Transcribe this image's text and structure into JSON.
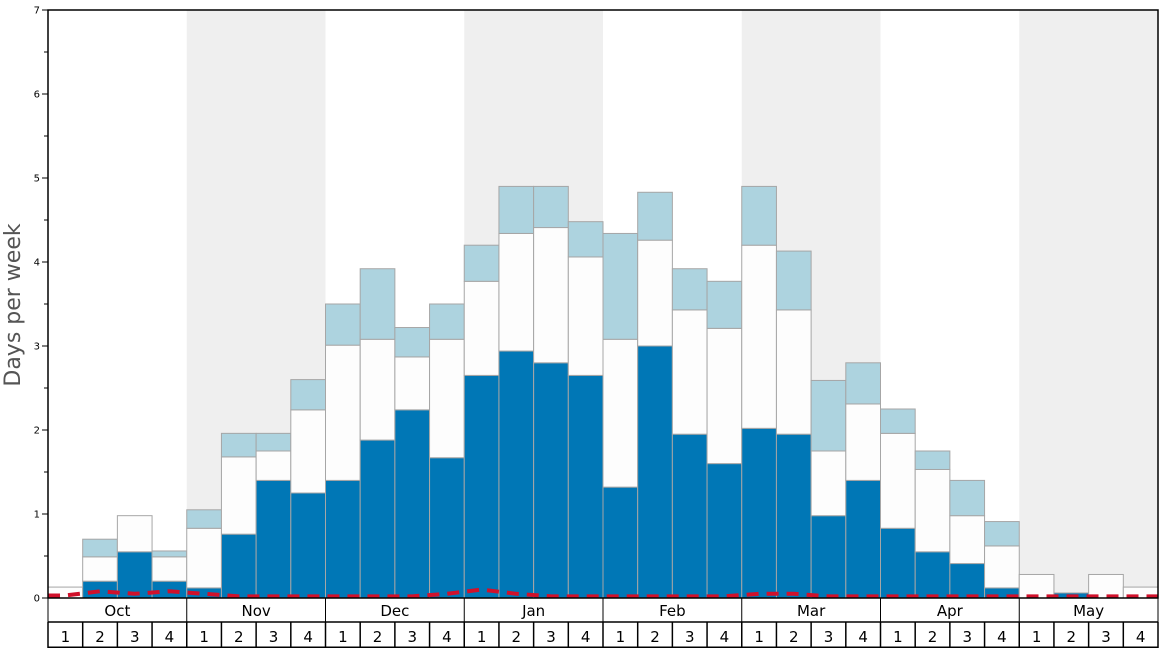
{
  "chart_data": {
    "type": "bar",
    "ylabel": "Days per week",
    "ylim": [
      0,
      7
    ],
    "yticks": [
      "0",
      "1",
      "2",
      "3",
      "4",
      "5",
      "6",
      "7"
    ],
    "months": [
      "Oct",
      "Nov",
      "Dec",
      "Jan",
      "Feb",
      "Mar",
      "Apr",
      "May"
    ],
    "week_labels": [
      "1",
      "2",
      "3",
      "4"
    ],
    "stacked": true,
    "colors": {
      "bottom": "#0077b6",
      "middle": "#fdfdfd",
      "top": "#add3df",
      "dashed_line": "#d0112b",
      "shaded_band": "#efefef"
    },
    "series": [
      {
        "values": [
          0,
          0.2,
          0.55,
          0.2,
          0.12,
          0.76,
          1.4,
          1.25,
          1.4,
          1.88,
          2.24,
          1.67,
          2.65,
          2.94,
          2.8,
          2.65,
          1.32,
          3.0,
          1.95,
          1.6,
          2.02,
          1.95,
          0.98,
          1.4,
          0.83,
          0.55,
          0.41,
          0.12,
          0,
          0.06,
          0,
          0
        ]
      },
      {
        "values": [
          0.13,
          0.29,
          0.43,
          0.29,
          0.71,
          0.92,
          0.35,
          0.99,
          1.61,
          1.2,
          0.63,
          1.41,
          1.12,
          1.4,
          1.61,
          1.41,
          1.76,
          1.26,
          1.48,
          1.61,
          2.18,
          1.48,
          0.77,
          0.91,
          1.13,
          0.98,
          0.57,
          0.5,
          0.28,
          0,
          0.28,
          0.13
        ]
      },
      {
        "values": [
          0,
          0.21,
          0,
          0.07,
          0.22,
          0.28,
          0.21,
          0.36,
          0.49,
          0.84,
          0.35,
          0.42,
          0.43,
          0.56,
          0.49,
          0.42,
          1.26,
          0.57,
          0.49,
          0.56,
          0.7,
          0.7,
          0.84,
          0.49,
          0.29,
          0.22,
          0.42,
          0.29,
          0,
          0,
          0,
          0
        ]
      }
    ],
    "line": {
      "style": "dashed",
      "values": [
        0.03,
        0.08,
        0.05,
        0.08,
        0.05,
        0.02,
        0.02,
        0.02,
        0.02,
        0.02,
        0.02,
        0.05,
        0.1,
        0.05,
        0.02,
        0.02,
        0.02,
        0.02,
        0.02,
        0.02,
        0.05,
        0.05,
        0.02,
        0.02,
        0.02,
        0.02,
        0.02,
        0.02,
        0.02,
        0.02,
        0.02,
        0.02
      ]
    }
  }
}
